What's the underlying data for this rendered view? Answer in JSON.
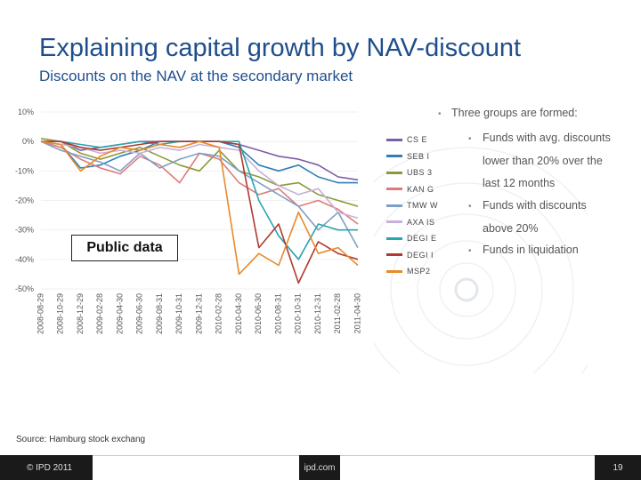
{
  "slide": {
    "title": "Explaining capital growth by NAV-discount",
    "subtitle": "Discounts on the NAV at the secondary market",
    "public_box": "Public data",
    "source": "Source: Hamburg stock exchang",
    "footer": {
      "copyright": "© IPD 2011",
      "url": "ipd.com",
      "page": "19"
    },
    "bullets": {
      "intro_label": "Three groups are formed:",
      "group1_line1": "Funds with avg. discounts",
      "group1_line2": "lower than 20% over the",
      "group1_line3": "last 12 months",
      "group2_line1": "Funds with discounts",
      "group2_line2": "above 20%",
      "group3_line1": "Funds in liquidation"
    }
  },
  "chart_data": {
    "type": "line",
    "title": "",
    "xlabel": "",
    "ylabel": "",
    "ylim": [
      -50,
      10
    ],
    "y_ticks": [
      "10%",
      "0%",
      "-10%",
      "-20%",
      "-30%",
      "-40%",
      "-50%"
    ],
    "y_tick_values": [
      10,
      0,
      -10,
      -20,
      -30,
      -40,
      -50
    ],
    "categories": [
      "2008-08-29",
      "2008-10-29",
      "2008-12-29",
      "2009-02-28",
      "2009-04-30",
      "2009-06-30",
      "2009-08-31",
      "2009-10-31",
      "2009-12-31",
      "2010-02-28",
      "2010-04-30",
      "2010-06-30",
      "2010-08-31",
      "2010-10-31",
      "2010-12-31",
      "2011-02-28",
      "2011-04-30"
    ],
    "series": [
      {
        "name": "CS E",
        "color": "#7b5ea7",
        "values": [
          0,
          0,
          -3,
          -2,
          -1,
          0,
          0,
          0,
          0,
          0,
          -1,
          -3,
          -5,
          -6,
          -8,
          -12,
          -13
        ]
      },
      {
        "name": "SEB I",
        "color": "#2e7fb8",
        "values": [
          0,
          -1,
          -9,
          -8,
          -5,
          -3,
          0,
          0,
          0,
          0,
          -2,
          -8,
          -10,
          -8,
          -12,
          -14,
          -14
        ]
      },
      {
        "name": "UBS 3",
        "color": "#8a9a3a",
        "values": [
          1,
          0,
          -4,
          -6,
          -4,
          -2,
          -5,
          -8,
          -10,
          -3,
          -10,
          -12,
          -15,
          -14,
          -18,
          -20,
          -22
        ]
      },
      {
        "name": "KAN G",
        "color": "#e07a7a",
        "values": [
          0,
          -2,
          -6,
          -9,
          -11,
          -5,
          -8,
          -14,
          -4,
          -6,
          -14,
          -18,
          -16,
          -22,
          -20,
          -23,
          -28
        ]
      },
      {
        "name": "TMW W",
        "color": "#7f9fc4",
        "values": [
          0,
          -3,
          -5,
          -7,
          -10,
          -4,
          -9,
          -6,
          -4,
          -5,
          -10,
          -14,
          -18,
          -22,
          -30,
          -24,
          -36
        ]
      },
      {
        "name": "AXA IS",
        "color": "#c9b0d8",
        "values": [
          0,
          -1,
          -2,
          -4,
          -3,
          -4,
          -2,
          -3,
          -1,
          -2,
          -3,
          -10,
          -15,
          -18,
          -16,
          -24,
          -26
        ]
      },
      {
        "name": "DEGI E",
        "color": "#2aa4b0",
        "values": [
          0,
          0,
          -1,
          -2,
          -1,
          0,
          -1,
          0,
          0,
          0,
          0,
          -20,
          -32,
          -40,
          -28,
          -30,
          -30
        ]
      },
      {
        "name": "DEGI I",
        "color": "#b03a2e",
        "values": [
          0,
          0,
          -2,
          -3,
          -2,
          -1,
          0,
          0,
          0,
          0,
          -1,
          -36,
          -28,
          -48,
          -34,
          -38,
          -40
        ]
      },
      {
        "name": "MSP2",
        "color": "#e88a2a",
        "values": [
          0,
          -1,
          -10,
          -5,
          -2,
          -3,
          -1,
          -2,
          0,
          -2,
          -45,
          -38,
          -42,
          -24,
          -38,
          -36,
          -42
        ]
      }
    ]
  }
}
